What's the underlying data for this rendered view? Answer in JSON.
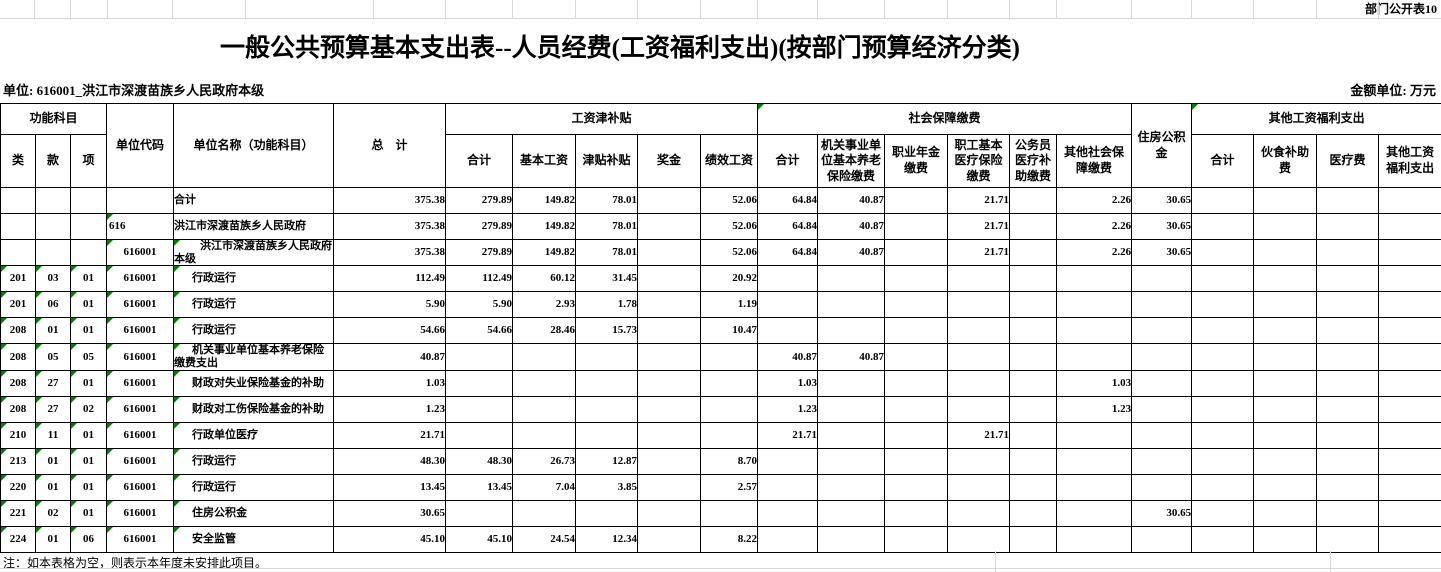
{
  "page": {
    "corner_label": "部门公开表10",
    "title": "一般公共预算基本支出表--人员经费(工资福利支出)(按部门预算经济分类)",
    "unit_label": "单位: 616001_洪江市深渡苗族乡人民政府本级",
    "amount_unit_label": "金额单位: 万元",
    "note": "注：如本表格为空，则表示本年度未安排此项目。"
  },
  "header": {
    "func_group": "功能科目",
    "class_label": "类",
    "section_label": "款",
    "item_label": "项",
    "unit_code": "单位代码",
    "unit_name": "单位名称（功能科目）",
    "total": "总　计",
    "wage_group": "工资津补贴",
    "wage_cols": [
      "合计",
      "基本工资",
      "津贴补贴",
      "奖金",
      "绩效工资"
    ],
    "social_group": "社会保障缴费",
    "social_cols": [
      "合计",
      "机关事业单位基本养老保险缴费",
      "职业年金缴费",
      "职工基本医疗保险缴费",
      "公务员医疗补助缴费",
      "其他社会保障缴费"
    ],
    "housing": "住房公积金",
    "other_group": "其他工资福利支出",
    "other_cols": [
      "合计",
      "伙食补助费",
      "医疗费",
      "其他工资福利支出"
    ]
  },
  "table": {
    "rows": [
      {
        "cells": [
          "",
          "",
          "",
          "",
          "合计",
          "375.38",
          "279.89",
          "149.82",
          "78.01",
          "",
          "52.06",
          "64.84",
          "40.87",
          "",
          "21.71",
          "",
          "2.26",
          "30.65",
          "",
          "",
          "",
          ""
        ],
        "indent": 0,
        "tri": [],
        "code_align": "center"
      },
      {
        "cells": [
          "",
          "",
          "",
          "616",
          "洪江市深渡苗族乡人民政府",
          "375.38",
          "279.89",
          "149.82",
          "78.01",
          "",
          "52.06",
          "64.84",
          "40.87",
          "",
          "21.71",
          "",
          "2.26",
          "30.65",
          "",
          "",
          "",
          ""
        ],
        "indent": 0,
        "tri": [
          3
        ],
        "code_align": "left"
      },
      {
        "cells": [
          "",
          "",
          "",
          "616001",
          "洪江市深渡苗族乡人民政府本级",
          "375.38",
          "279.89",
          "149.82",
          "78.01",
          "",
          "52.06",
          "64.84",
          "40.87",
          "",
          "21.71",
          "",
          "2.26",
          "30.65",
          "",
          "",
          "",
          ""
        ],
        "indent": 2,
        "tri": [
          3,
          4
        ],
        "code_align": "center"
      },
      {
        "cells": [
          "201",
          "03",
          "01",
          "616001",
          "行政运行",
          "112.49",
          "112.49",
          "60.12",
          "31.45",
          "",
          "20.92",
          "",
          "",
          "",
          "",
          "",
          "",
          "",
          "",
          "",
          "",
          ""
        ],
        "indent": 1,
        "tri": [
          0,
          1,
          2,
          3,
          4
        ],
        "code_align": "center"
      },
      {
        "cells": [
          "201",
          "06",
          "01",
          "616001",
          "行政运行",
          "5.90",
          "5.90",
          "2.93",
          "1.78",
          "",
          "1.19",
          "",
          "",
          "",
          "",
          "",
          "",
          "",
          "",
          "",
          "",
          ""
        ],
        "indent": 1,
        "tri": [
          0,
          1,
          2,
          3,
          4
        ],
        "code_align": "center"
      },
      {
        "cells": [
          "208",
          "01",
          "01",
          "616001",
          "行政运行",
          "54.66",
          "54.66",
          "28.46",
          "15.73",
          "",
          "10.47",
          "",
          "",
          "",
          "",
          "",
          "",
          "",
          "",
          "",
          "",
          ""
        ],
        "indent": 1,
        "tri": [
          0,
          1,
          2,
          3,
          4
        ],
        "code_align": "center"
      },
      {
        "cells": [
          "208",
          "05",
          "05",
          "616001",
          "机关事业单位基本养老保险缴费支出",
          "40.87",
          "",
          "",
          "",
          "",
          "",
          "40.87",
          "40.87",
          "",
          "",
          "",
          "",
          "",
          "",
          "",
          "",
          ""
        ],
        "indent": 1,
        "tri": [
          0,
          1,
          2,
          3,
          4
        ],
        "code_align": "center"
      },
      {
        "cells": [
          "208",
          "27",
          "01",
          "616001",
          "财政对失业保险基金的补助",
          "1.03",
          "",
          "",
          "",
          "",
          "",
          "1.03",
          "",
          "",
          "",
          "",
          "1.03",
          "",
          "",
          "",
          "",
          ""
        ],
        "indent": 1,
        "tri": [
          0,
          1,
          2,
          3,
          4
        ],
        "code_align": "center"
      },
      {
        "cells": [
          "208",
          "27",
          "02",
          "616001",
          "财政对工伤保险基金的补助",
          "1.23",
          "",
          "",
          "",
          "",
          "",
          "1.23",
          "",
          "",
          "",
          "",
          "1.23",
          "",
          "",
          "",
          "",
          ""
        ],
        "indent": 1,
        "tri": [
          0,
          1,
          2,
          3,
          4
        ],
        "code_align": "center"
      },
      {
        "cells": [
          "210",
          "11",
          "01",
          "616001",
          "行政单位医疗",
          "21.71",
          "",
          "",
          "",
          "",
          "",
          "21.71",
          "",
          "",
          "21.71",
          "",
          "",
          "",
          "",
          "",
          "",
          ""
        ],
        "indent": 1,
        "tri": [
          0,
          1,
          2,
          3,
          4
        ],
        "code_align": "center"
      },
      {
        "cells": [
          "213",
          "01",
          "01",
          "616001",
          "行政运行",
          "48.30",
          "48.30",
          "26.73",
          "12.87",
          "",
          "8.70",
          "",
          "",
          "",
          "",
          "",
          "",
          "",
          "",
          "",
          "",
          ""
        ],
        "indent": 1,
        "tri": [
          0,
          1,
          2,
          3,
          4
        ],
        "code_align": "center"
      },
      {
        "cells": [
          "220",
          "01",
          "01",
          "616001",
          "行政运行",
          "13.45",
          "13.45",
          "7.04",
          "3.85",
          "",
          "2.57",
          "",
          "",
          "",
          "",
          "",
          "",
          "",
          "",
          "",
          "",
          ""
        ],
        "indent": 1,
        "tri": [
          0,
          1,
          2,
          3,
          4
        ],
        "code_align": "center"
      },
      {
        "cells": [
          "221",
          "02",
          "01",
          "616001",
          "住房公积金",
          "30.65",
          "",
          "",
          "",
          "",
          "",
          "",
          "",
          "",
          "",
          "",
          "",
          "30.65",
          "",
          "",
          "",
          ""
        ],
        "indent": 1,
        "tri": [
          0,
          1,
          2,
          3,
          4
        ],
        "code_align": "center"
      },
      {
        "cells": [
          "224",
          "01",
          "06",
          "616001",
          "安全监管",
          "45.10",
          "45.10",
          "24.54",
          "12.34",
          "",
          "8.22",
          "",
          "",
          "",
          "",
          "",
          "",
          "",
          "",
          "",
          "",
          ""
        ],
        "indent": 1,
        "tri": [
          0,
          1,
          2,
          3,
          4
        ],
        "code_align": "center"
      }
    ]
  }
}
